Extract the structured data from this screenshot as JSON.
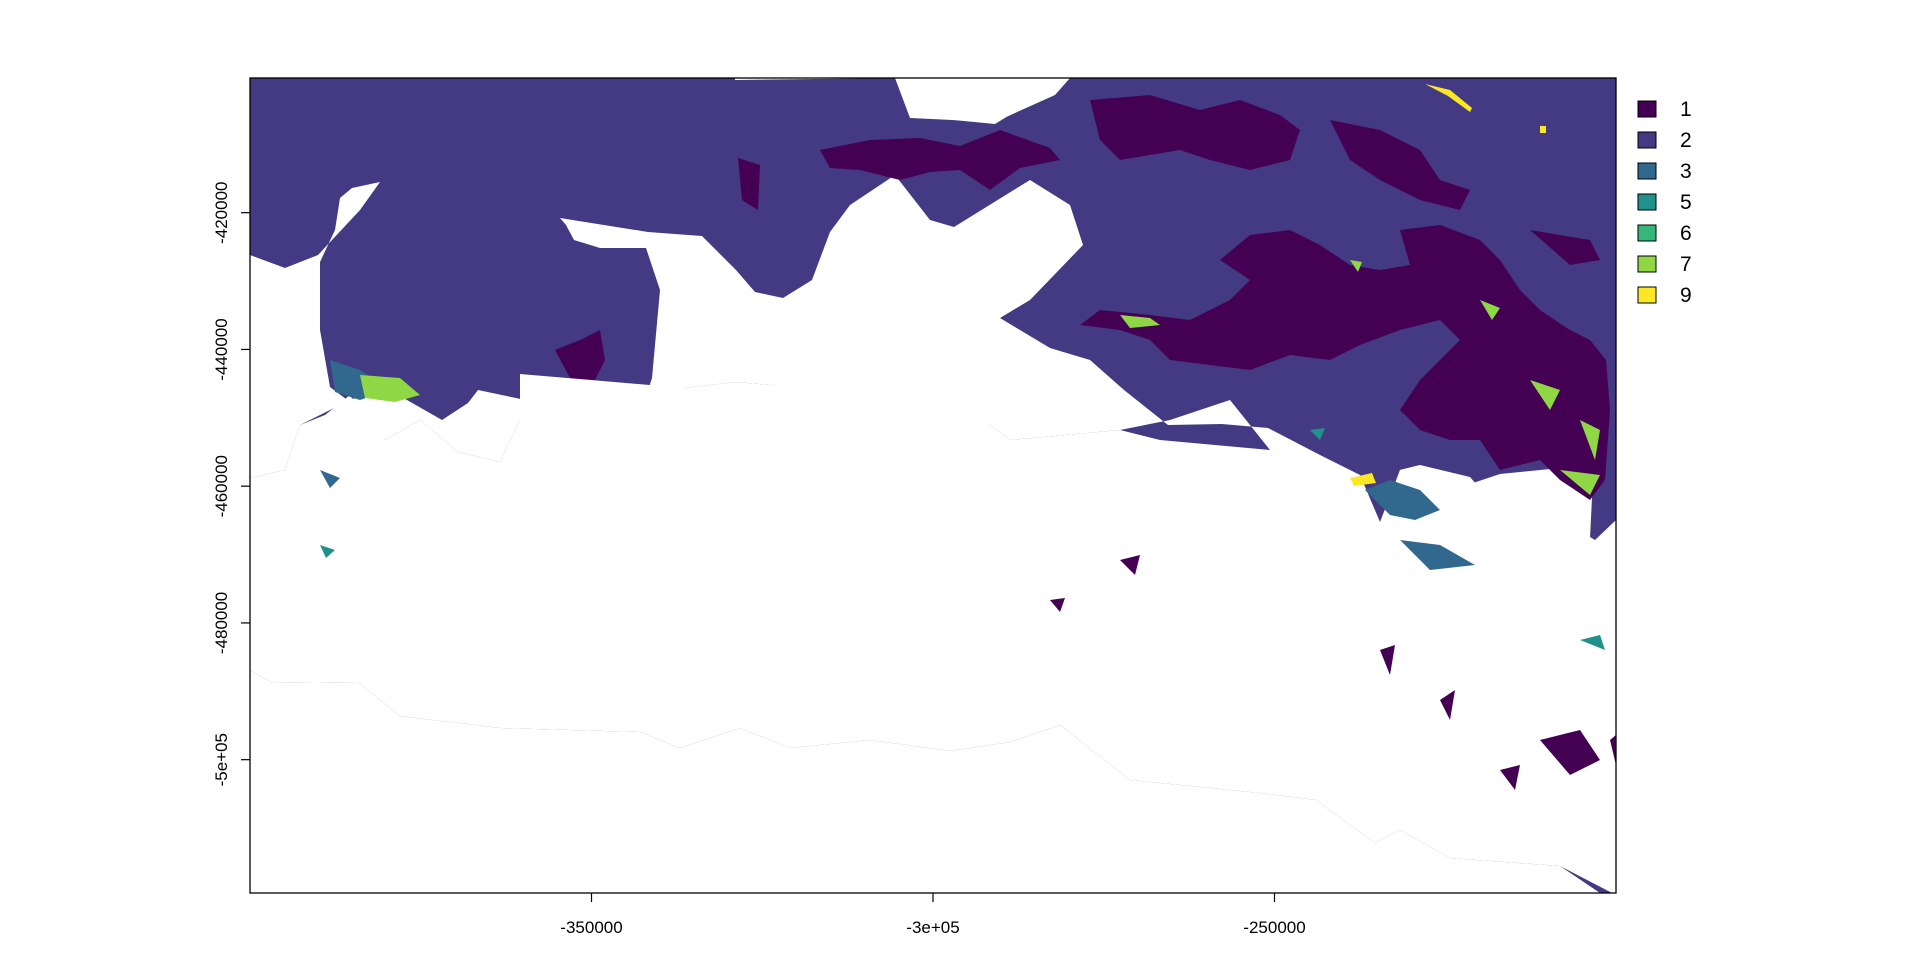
{
  "map": {
    "x_ticks": [
      {
        "value": -350000,
        "label": "-350000"
      },
      {
        "value": -300000,
        "label": "-3e+05"
      },
      {
        "value": -250000,
        "label": "-250000"
      }
    ],
    "y_ticks": [
      {
        "value": -420000,
        "label": "-420000"
      },
      {
        "value": -440000,
        "label": "-440000"
      },
      {
        "value": -460000,
        "label": "-460000"
      },
      {
        "value": -480000,
        "label": "-480000"
      },
      {
        "value": -500000,
        "label": "-5e+05"
      }
    ],
    "xlim": [
      -400000,
      -200000
    ],
    "ylim": [
      -519500,
      -400300
    ]
  },
  "legend": [
    {
      "label": "1",
      "color": "#440154"
    },
    {
      "label": "2",
      "color": "#443a83"
    },
    {
      "label": "3",
      "color": "#31688e"
    },
    {
      "label": "5",
      "color": "#21918c"
    },
    {
      "label": "6",
      "color": "#35b779"
    },
    {
      "label": "7",
      "color": "#8fd744"
    },
    {
      "label": "9",
      "color": "#fde725"
    }
  ]
}
